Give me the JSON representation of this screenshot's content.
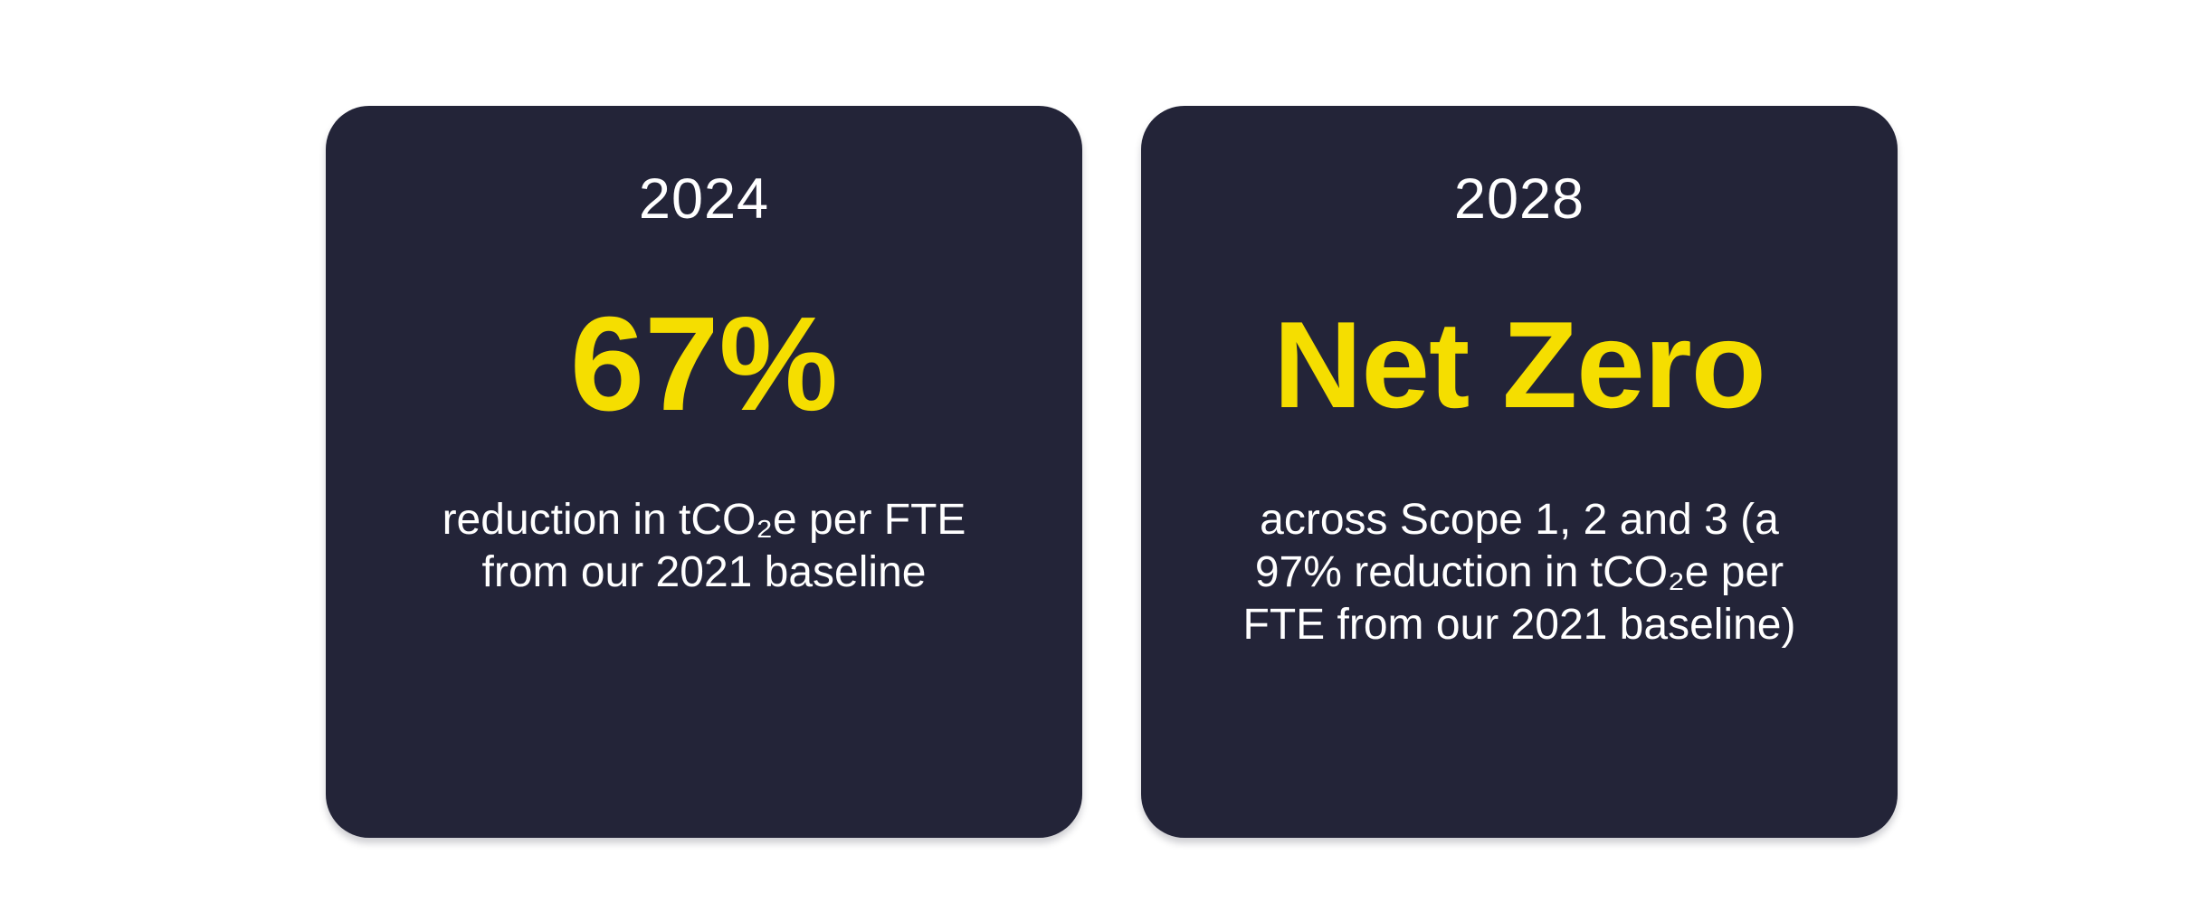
{
  "page": {
    "background_color": "#ffffff"
  },
  "theme": {
    "card_background": "#232438",
    "headline_color": "#F5DE00",
    "text_color": "#ffffff"
  },
  "cards": [
    {
      "year": "2024",
      "headline": "67%",
      "description_lines": {
        "0": "reduction in tCO₂e per FTE",
        "1": "from our 2021 baseline"
      }
    },
    {
      "year": "2028",
      "headline": "Net Zero",
      "description_lines": {
        "0": "across Scope 1, 2 and 3 (a",
        "1": "97% reduction in tCO₂e per",
        "2": "FTE from our 2021 baseline)"
      }
    }
  ]
}
